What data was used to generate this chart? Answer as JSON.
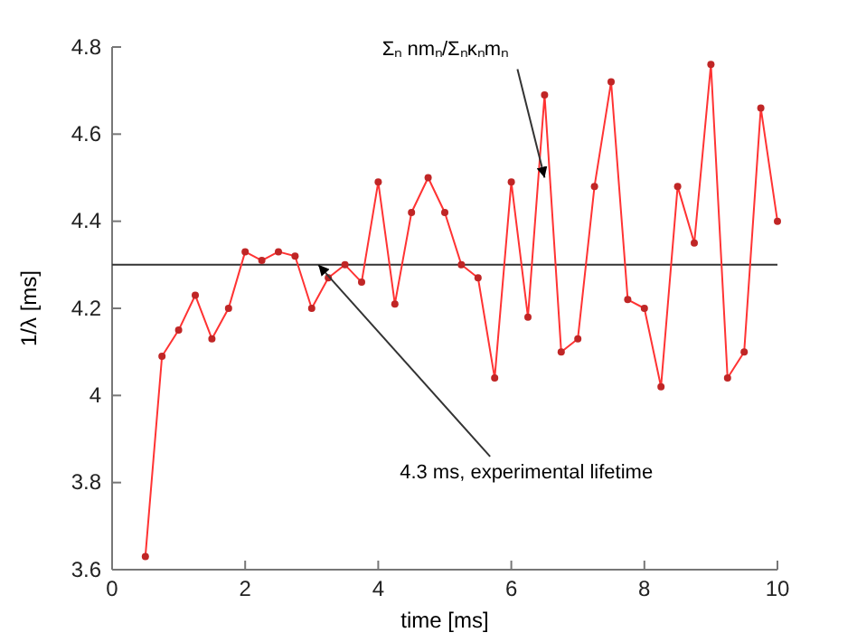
{
  "chart_data": {
    "type": "line",
    "xlabel": "time [ms]",
    "ylabel": "1/λ  [ms]",
    "x": [
      0.5,
      0.75,
      1,
      1.25,
      1.5,
      1.75,
      2,
      2.25,
      2.5,
      2.75,
      3,
      3.25,
      3.5,
      3.75,
      4,
      4.25,
      4.5,
      4.75,
      5,
      5.25,
      5.5,
      5.75,
      6,
      6.25,
      6.5,
      6.75,
      7,
      7.25,
      7.5,
      7.75,
      8,
      8.25,
      8.5,
      8.75,
      9,
      9.25,
      9.5,
      9.75,
      10
    ],
    "series": [
      {
        "color": "#ff3333",
        "values": [
          3.63,
          4.09,
          4.15,
          4.23,
          4.13,
          4.2,
          4.33,
          4.31,
          4.33,
          4.32,
          4.2,
          4.27,
          4.3,
          4.26,
          4.49,
          4.21,
          4.42,
          4.5,
          4.42,
          4.3,
          4.27,
          4.04,
          4.49,
          4.18,
          4.69,
          4.1,
          4.13,
          4.48,
          4.72,
          4.22,
          4.2,
          4.02,
          4.48,
          4.35,
          4.76,
          4.04,
          4.1,
          4.66,
          4.4
        ]
      }
    ],
    "marker": "circle",
    "line_style": "solid",
    "grid": false,
    "xlim": [
      0,
      10
    ],
    "xticks": [
      0,
      2,
      4,
      6,
      8,
      10
    ],
    "ylim": [
      3.6,
      4.8
    ],
    "yticks": [
      3.6,
      3.8,
      4,
      4.2,
      4.4,
      4.6,
      4.8
    ],
    "ref_lines": [
      {
        "axis": "y",
        "value": 4.3,
        "color": "#333333"
      }
    ],
    "annotations": [
      {
        "text": "4.3 ms, experimental lifetime",
        "x": 3.1,
        "y": 4.3
      },
      {
        "text": "Σₙ nmₙ/Σₙκₙmₙ",
        "x": 6.5,
        "y": 4.5
      }
    ]
  }
}
